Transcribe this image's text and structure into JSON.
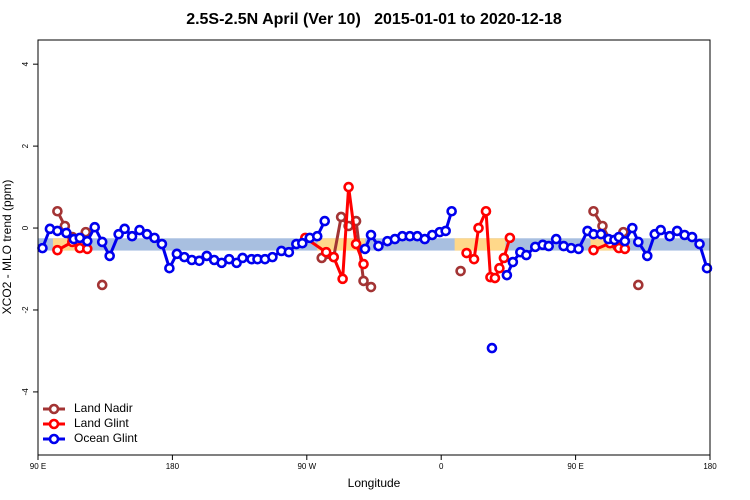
{
  "chart_data": {
    "type": "line",
    "title": "2.5S-2.5N April (Ver 10)   2015-01-01 to 2020-12-18",
    "xlabel": "Longitude",
    "ylabel": "XCO2 - MLO trend (ppm)",
    "xlim": [
      90,
      540
    ],
    "ylim": [
      -5.54,
      4.59
    ],
    "xticks": [
      {
        "value": 90,
        "label": "90 E"
      },
      180,
      {
        "value": 270,
        "label": "90 W"
      },
      {
        "value": 360,
        "label": "0"
      },
      {
        "value": 450,
        "label": "90 E"
      },
      {
        "value": 540,
        "label": "180"
      }
    ],
    "yticks": [
      -4,
      -2,
      0,
      2,
      4
    ],
    "legend": "bottom-left",
    "bands": [
      {
        "color": "#a8bfe0",
        "x": [
          90,
          540
        ],
        "y": [
          -0.55,
          -0.25
        ]
      },
      {
        "color": "#ffd88a",
        "x": [
          100,
          120
        ],
        "y": [
          -0.55,
          -0.25
        ]
      },
      {
        "color": "#ffd88a",
        "x": [
          277,
          309
        ],
        "y": [
          -0.55,
          -0.25
        ]
      },
      {
        "color": "#ffd88a",
        "x": [
          369,
          403
        ],
        "y": [
          -0.55,
          -0.25
        ]
      },
      {
        "color": "#ffd88a",
        "x": [
          460,
          486
        ],
        "y": [
          -0.55,
          -0.25
        ]
      }
    ],
    "series": [
      {
        "name": "Land Nadir",
        "color": "#a33434",
        "x": [
          103,
          108,
          113,
          118,
          122,
          null,
          133,
          null,
          280,
          288,
          293,
          298,
          303,
          308,
          313,
          null,
          373,
          null,
          462,
          468,
          473,
          478,
          482,
          null,
          492
        ],
        "values": [
          0.41,
          0.05,
          -0.22,
          -0.39,
          -0.1,
          null,
          -1.39,
          null,
          -0.73,
          -0.71,
          0.27,
          0.05,
          0.17,
          -1.29,
          -1.44,
          null,
          -1.05,
          null,
          0.41,
          0.05,
          -0.29,
          -0.44,
          -0.1,
          null,
          -1.39
        ]
      },
      {
        "name": "Land Glint",
        "color": "#ff0000",
        "x": [
          103,
          113,
          118,
          123,
          null,
          269,
          283,
          288,
          294,
          298,
          303,
          308,
          null,
          377,
          382,
          385,
          390,
          393,
          396,
          399,
          402,
          406,
          null,
          462,
          473,
          479,
          483
        ],
        "values": [
          -0.54,
          -0.34,
          -0.49,
          -0.51,
          null,
          -0.24,
          -0.59,
          -0.71,
          -1.24,
          1.0,
          -0.39,
          -0.88,
          null,
          -0.61,
          -0.76,
          0,
          0.41,
          -1.2,
          -1.22,
          -0.98,
          -0.73,
          -0.24,
          null,
          -0.54,
          -0.37,
          -0.49,
          -0.51
        ]
      },
      {
        "name": "Ocean Glint",
        "color": "#0000ee",
        "x": [
          93,
          98,
          103,
          109,
          114,
          118,
          123,
          128,
          133,
          138,
          144,
          148,
          153,
          158,
          163,
          168,
          173,
          178,
          183,
          188,
          193,
          198,
          203,
          208,
          213,
          218,
          223,
          227,
          233,
          237,
          242,
          247,
          253,
          258,
          263,
          267,
          272,
          277,
          282,
          null,
          309,
          313,
          318,
          324,
          329,
          334,
          339,
          344,
          349,
          354,
          359,
          363,
          367,
          null,
          394,
          null,
          404,
          408,
          413,
          417,
          423,
          428,
          432,
          437,
          442,
          447,
          452,
          458,
          462,
          467,
          472,
          476,
          479,
          483,
          488,
          492,
          498,
          503,
          507,
          513,
          518,
          523,
          528,
          533,
          538
        ],
        "values": [
          -0.49,
          -0.02,
          -0.07,
          -0.12,
          -0.27,
          -0.24,
          -0.32,
          0.02,
          -0.34,
          -0.68,
          -0.15,
          -0.02,
          -0.2,
          -0.05,
          -0.15,
          -0.24,
          -0.39,
          -0.98,
          -0.63,
          -0.71,
          -0.78,
          -0.8,
          -0.68,
          -0.78,
          -0.85,
          -0.76,
          -0.85,
          -0.73,
          -0.76,
          -0.76,
          -0.76,
          -0.71,
          -0.56,
          -0.59,
          -0.39,
          -0.37,
          -0.24,
          -0.2,
          0.17,
          null,
          -0.51,
          -0.17,
          -0.44,
          -0.32,
          -0.27,
          -0.2,
          -0.2,
          -0.2,
          -0.27,
          -0.17,
          -0.1,
          -0.07,
          0.41,
          null,
          -2.93,
          null,
          -1.15,
          -0.83,
          -0.59,
          -0.66,
          -0.46,
          -0.41,
          -0.44,
          -0.27,
          -0.44,
          -0.49,
          -0.51,
          -0.07,
          -0.15,
          -0.15,
          -0.27,
          -0.29,
          -0.22,
          -0.32,
          0,
          -0.34,
          -0.68,
          -0.15,
          -0.05,
          -0.2,
          -0.07,
          -0.17,
          -0.22,
          -0.39,
          -0.98
        ]
      }
    ]
  }
}
